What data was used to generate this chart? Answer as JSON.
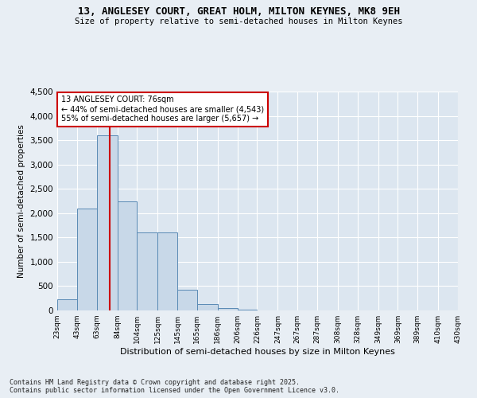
{
  "title1": "13, ANGLESEY COURT, GREAT HOLM, MILTON KEYNES, MK8 9EH",
  "title2": "Size of property relative to semi-detached houses in Milton Keynes",
  "xlabel": "Distribution of semi-detached houses by size in Milton Keynes",
  "ylabel": "Number of semi-detached properties",
  "footnote": "Contains HM Land Registry data © Crown copyright and database right 2025.\nContains public sector information licensed under the Open Government Licence v3.0.",
  "annotation_title": "13 ANGLESEY COURT: 76sqm",
  "annotation_line1": "← 44% of semi-detached houses are smaller (4,543)",
  "annotation_line2": "55% of semi-detached houses are larger (5,657) →",
  "property_size": 76,
  "bin_edges": [
    23,
    43,
    63,
    84,
    104,
    125,
    145,
    165,
    186,
    206,
    226,
    247,
    267,
    287,
    308,
    328,
    349,
    369,
    389,
    410,
    430
  ],
  "bar_heights": [
    230,
    2100,
    3600,
    2250,
    1600,
    1600,
    430,
    130,
    50,
    10,
    0,
    0,
    0,
    0,
    0,
    0,
    0,
    0,
    0,
    0
  ],
  "bar_color": "#c8d8e8",
  "bar_edge_color": "#5a8ab5",
  "red_line_color": "#cc0000",
  "annotation_box_color": "#cc0000",
  "background_color": "#e8eef4",
  "plot_bg_color": "#dce6f0",
  "grid_color": "#ffffff",
  "ylim": [
    0,
    4500
  ],
  "yticks": [
    0,
    500,
    1000,
    1500,
    2000,
    2500,
    3000,
    3500,
    4000,
    4500
  ]
}
